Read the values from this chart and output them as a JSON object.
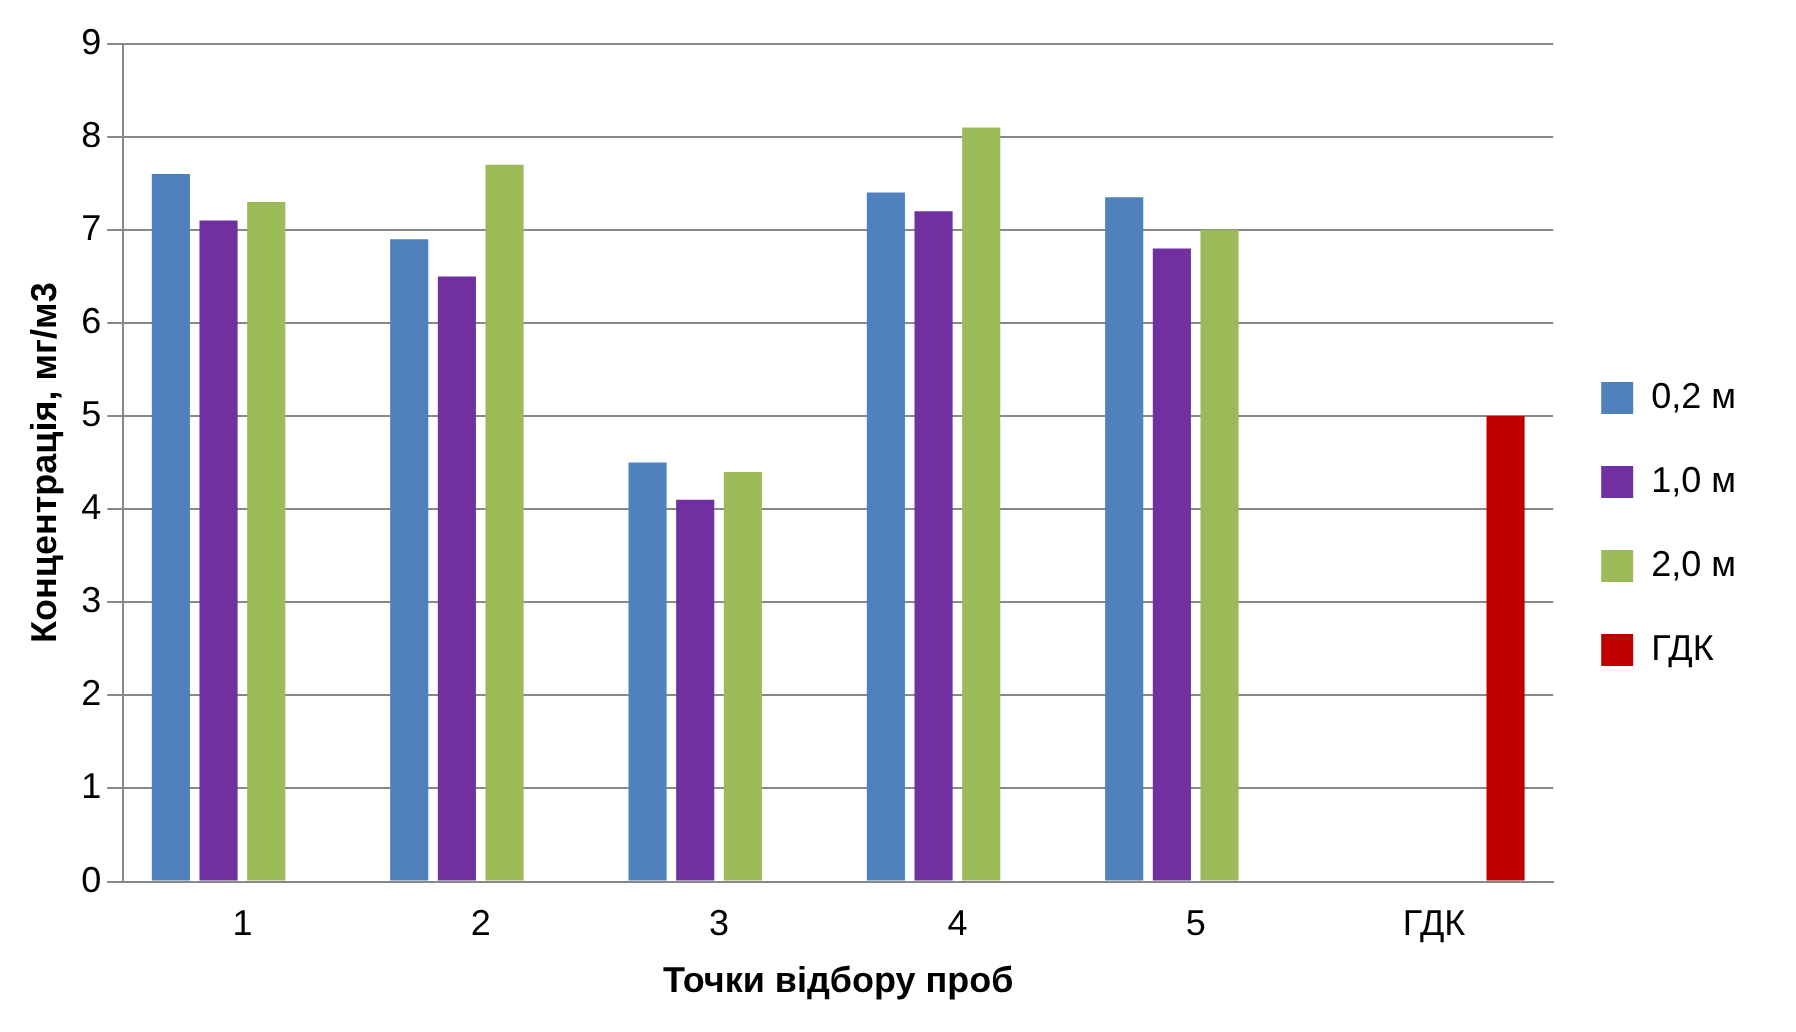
{
  "chart_data": {
    "type": "bar",
    "xlabel": "Точки відбору проб",
    "ylabel": "Концентрація, мг/м3",
    "categories": [
      "1",
      "2",
      "3",
      "4",
      "5",
      "ГДК"
    ],
    "series": [
      {
        "name": "0,2 м",
        "color": "#4f81bd",
        "values": [
          7.6,
          6.9,
          4.5,
          7.4,
          7.35,
          null
        ]
      },
      {
        "name": "1,0 м",
        "color": "#7030a0",
        "values": [
          7.1,
          6.5,
          4.1,
          7.2,
          6.8,
          null
        ]
      },
      {
        "name": "2,0 м",
        "color": "#9bbb59",
        "values": [
          7.3,
          7.7,
          4.4,
          8.1,
          7.0,
          null
        ]
      },
      {
        "name": "ГДК",
        "color": "#c00000",
        "values": [
          null,
          null,
          null,
          null,
          null,
          5.0
        ]
      }
    ],
    "ylim": [
      0,
      9
    ],
    "yticks": [
      0,
      1,
      2,
      3,
      4,
      5,
      6,
      7,
      8,
      9
    ],
    "grid": "y",
    "legend": "right"
  }
}
